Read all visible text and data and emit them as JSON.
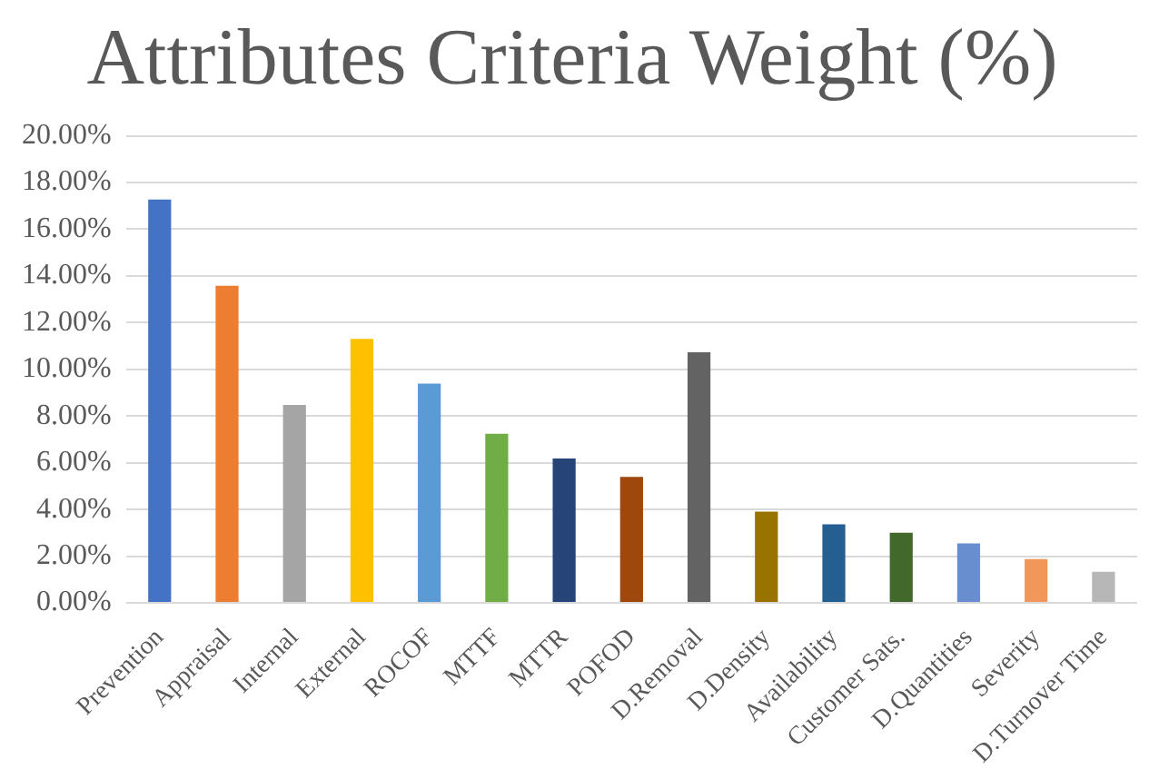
{
  "chart_data": {
    "type": "bar",
    "title": "Attributes Criteria Weight (%)",
    "categories": [
      "Prevention",
      "Appraisal",
      "Internal",
      "External",
      "ROCOF",
      "MTTF",
      "MTTR",
      "POFOD",
      "D.Removal",
      "D.Density",
      "Availability",
      "Customer Sats.",
      "D.Quantities",
      "Severity",
      "D.Turnover Time"
    ],
    "values": [
      17.27,
      13.58,
      8.48,
      11.3,
      9.39,
      7.24,
      6.18,
      5.39,
      10.73,
      3.91,
      3.36,
      3.0,
      2.55,
      1.88,
      1.33
    ],
    "colors": [
      "#4472c4",
      "#ed7d31",
      "#a5a5a5",
      "#ffc000",
      "#5b9bd5",
      "#70ad47",
      "#264478",
      "#9e480e",
      "#636363",
      "#997300",
      "#255e91",
      "#43682b",
      "#698ed0",
      "#f1975a",
      "#b7b7b7"
    ],
    "ylim": [
      0,
      20
    ],
    "yticks": [
      {
        "value": 0,
        "label": "0.00%"
      },
      {
        "value": 2,
        "label": "2.00%"
      },
      {
        "value": 4,
        "label": "4.00%"
      },
      {
        "value": 6,
        "label": "6.00%"
      },
      {
        "value": 8,
        "label": "8.00%"
      },
      {
        "value": 10,
        "label": "10.00%"
      },
      {
        "value": 12,
        "label": "12.00%"
      },
      {
        "value": 14,
        "label": "14.00%"
      },
      {
        "value": 16,
        "label": "16.00%"
      },
      {
        "value": 18,
        "label": "18.00%"
      },
      {
        "value": 20,
        "label": "20.00%"
      }
    ],
    "grid": "y"
  }
}
